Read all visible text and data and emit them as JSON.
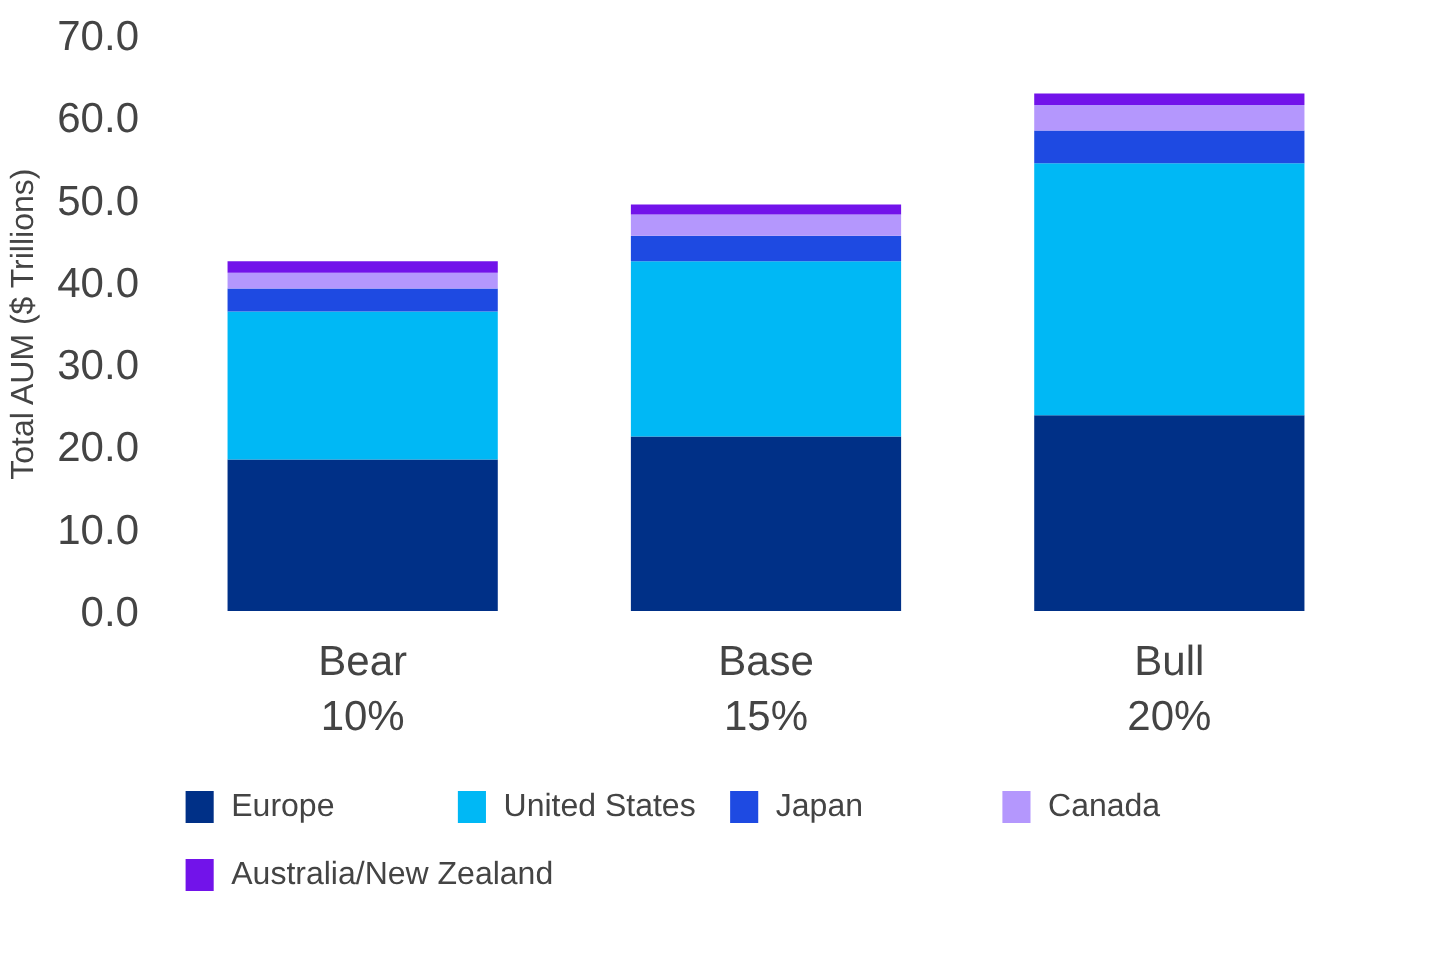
{
  "chart_data": {
    "type": "bar",
    "stacked": true,
    "ylabel": "Total AUM ($ Trillions)",
    "categories": [
      "Bear\n10%",
      "Base\n15%",
      "Bull\n20%"
    ],
    "ylim": [
      0,
      70
    ],
    "yticks": [
      {
        "value": 0,
        "label": "0.0"
      },
      {
        "value": 10,
        "label": "10.0"
      },
      {
        "value": 20,
        "label": "20.0"
      },
      {
        "value": 30,
        "label": "30.0"
      },
      {
        "value": 40,
        "label": "40.0"
      },
      {
        "value": 50,
        "label": "50.0"
      },
      {
        "value": 60,
        "label": "60.0"
      },
      {
        "value": 70,
        "label": "70.0"
      }
    ],
    "grid": false,
    "legend": "bottom",
    "series": [
      {
        "name": "Europe",
        "color": "#003087",
        "values": [
          18.4,
          21.2,
          23.8
        ]
      },
      {
        "name": "United States",
        "color": "#00b8f5",
        "values": [
          18.0,
          21.3,
          30.6
        ]
      },
      {
        "name": "Japan",
        "color": "#1e4ae2",
        "values": [
          2.8,
          3.1,
          4.0
        ]
      },
      {
        "name": "Canada",
        "color": "#b497fd",
        "values": [
          1.9,
          2.6,
          3.1
        ]
      },
      {
        "name": "Australia/New Zealand",
        "color": "#7213ea",
        "values": [
          1.4,
          1.2,
          1.4
        ]
      }
    ]
  }
}
